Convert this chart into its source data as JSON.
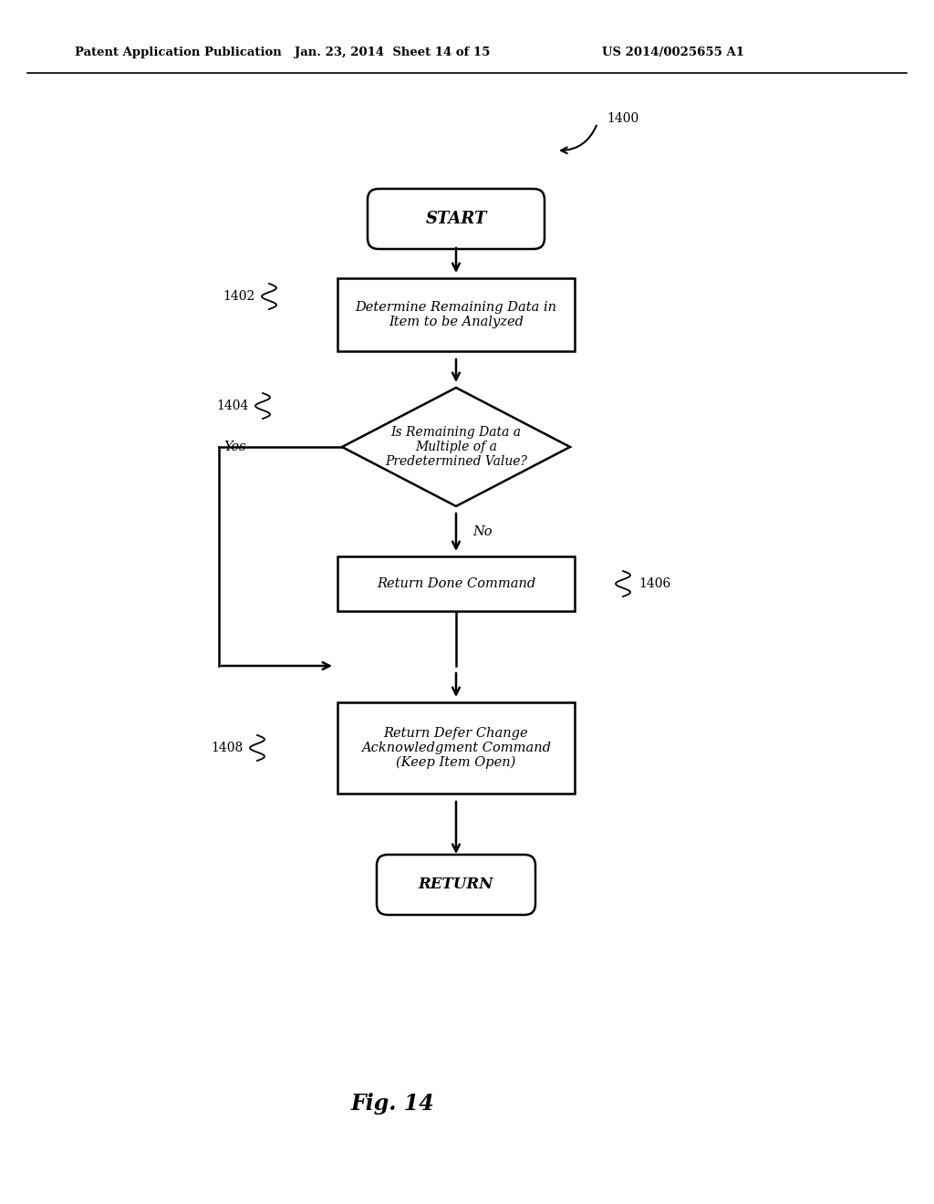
{
  "header_left": "Patent Application Publication",
  "header_center": "Jan. 23, 2014  Sheet 14 of 15",
  "header_right": "US 2014/0025655 A1",
  "fig_label": "Fig. 14",
  "diagram_number": "1400",
  "background_color": "#ffffff"
}
